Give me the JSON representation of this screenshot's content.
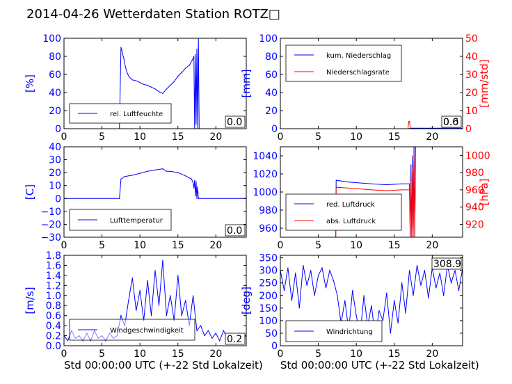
{
  "title": "2014-04-26 Wetterdaten Station ROTZ□",
  "xlabel": "Std 00:00:00 UTC (+-22 Std Lokalzeit)",
  "colors": {
    "primary": "#0000ff",
    "secondary": "#ff0000",
    "light": "#8080ff"
  },
  "chart_data": [
    {
      "id": "humidity",
      "type": "line",
      "ylabel": "[%]",
      "xlim": [
        0,
        24
      ],
      "ylim": [
        0,
        100
      ],
      "xticks": [
        "0",
        "5",
        "10",
        "15",
        "20"
      ],
      "yticks": [
        "0",
        "20",
        "40",
        "60",
        "80",
        "100"
      ],
      "legend": [
        "rel. Luftfeuchte"
      ],
      "last_value": "0.0",
      "series": [
        {
          "name": "rel. Luftfeuchte",
          "x": [
            0,
            7.3,
            7.5,
            7.7,
            7.9,
            8.1,
            8.3,
            8.6,
            9,
            9.5,
            10,
            10.5,
            11,
            11.5,
            12,
            12.5,
            13,
            13.5,
            14,
            14.5,
            15,
            15.5,
            16,
            16.5,
            16.9,
            17.1,
            17.2,
            17.3,
            17.4,
            17.5,
            17.6,
            17.7,
            17.8,
            24
          ],
          "y": [
            0,
            0,
            90,
            83,
            77,
            68,
            62,
            57,
            54,
            53,
            51,
            49,
            48,
            46,
            44,
            41,
            39,
            44,
            48,
            52,
            58,
            62,
            67,
            70,
            76,
            80,
            0,
            82,
            5,
            88,
            0,
            100,
            0,
            0
          ]
        }
      ]
    },
    {
      "id": "precip",
      "type": "line",
      "ylabel": "[mm]",
      "y2label": "[mm/std]",
      "xlim": [
        0,
        24
      ],
      "ylim": [
        0,
        100
      ],
      "y2lim": [
        0,
        50
      ],
      "xticks": [
        "0",
        "5",
        "10",
        "15",
        "20"
      ],
      "yticks": [
        "0",
        "20",
        "40",
        "60",
        "80",
        "100"
      ],
      "y2ticks": [
        "0",
        "10",
        "20",
        "30",
        "40",
        "50"
      ],
      "legend": [
        "kum. Niederschlag",
        "Niederschlagsrate"
      ],
      "last_value": "0.0",
      "last_value_2": "0.6",
      "series": [
        {
          "name": "kum. Niederschlag",
          "x": [
            0,
            16.9,
            17.1,
            17.5,
            18,
            24
          ],
          "y": [
            0,
            0,
            0.5,
            0.6,
            0.6,
            0.6
          ]
        },
        {
          "name": "Niederschlagsrate",
          "axis": "y2",
          "x": [
            0,
            16.8,
            16.9,
            17,
            17.1,
            17.2,
            24
          ],
          "y": [
            0,
            0,
            4,
            4,
            0.5,
            0,
            0
          ]
        }
      ]
    },
    {
      "id": "temperature",
      "type": "line",
      "ylabel": "[C]",
      "xlim": [
        0,
        24
      ],
      "ylim": [
        -30,
        40
      ],
      "xticks": [
        "0",
        "5",
        "10",
        "15",
        "20"
      ],
      "yticks": [
        "−30",
        "−20",
        "−10",
        "0",
        "10",
        "20",
        "30",
        "40"
      ],
      "legend": [
        "Lufttemperatur"
      ],
      "last_value": "0.0",
      "series": [
        {
          "name": "Lufttemperatur",
          "x": [
            0,
            7.3,
            7.5,
            8,
            9,
            10,
            11,
            12,
            12.5,
            13,
            13.5,
            14,
            15,
            16,
            16.5,
            16.8,
            17,
            17.1,
            17.2,
            17.3,
            17.4,
            17.5,
            17.6,
            17.7,
            17.8,
            24
          ],
          "y": [
            0,
            0,
            15,
            17,
            18,
            19.5,
            21,
            22,
            22.5,
            23,
            21,
            21,
            20,
            17.5,
            16,
            15,
            12,
            8,
            14,
            2,
            13,
            0,
            9,
            0,
            0,
            0
          ]
        }
      ]
    },
    {
      "id": "pressure",
      "type": "line",
      "ylabel": "",
      "y2label": "[hPa]",
      "xlim": [
        0,
        24
      ],
      "ylim": [
        950,
        1050
      ],
      "y2lim": [
        905,
        1010
      ],
      "xticks": [
        "0",
        "5",
        "10",
        "15",
        "20"
      ],
      "yticks": [
        "960",
        "980",
        "1000",
        "1020",
        "1040"
      ],
      "y2ticks": [
        "920",
        "940",
        "960",
        "980",
        "1000"
      ],
      "legend": [
        "red. Luftdruck",
        "abs. Luftdruck"
      ],
      "series": [
        {
          "name": "red. Luftdruck",
          "x": [
            7.3,
            7.35,
            9,
            12,
            14,
            15,
            16,
            17,
            17.1,
            17.2,
            17.3,
            17.4,
            17.5,
            17.6,
            17.7,
            17.8
          ],
          "y": [
            950,
            1013,
            1011,
            1009,
            1008,
            1008.5,
            1009,
            1009,
            950,
            1030,
            950,
            1040,
            955,
            1050,
            950,
            1050
          ]
        },
        {
          "name": "abs. Luftdruck",
          "axis": "y2",
          "x": [
            7.3,
            7.35,
            9,
            12,
            14,
            16,
            17,
            17.1,
            17.2,
            17.3,
            17.4,
            17.5,
            17.6,
            17.7,
            17.8
          ],
          "y": [
            905,
            963,
            962,
            960,
            959,
            960,
            960,
            905,
            970,
            905,
            985,
            905,
            1002,
            905,
            990
          ]
        }
      ]
    },
    {
      "id": "windspeed",
      "type": "line",
      "ylabel": "[m/s]",
      "xlim": [
        0,
        24
      ],
      "ylim": [
        0,
        1.8
      ],
      "xticks": [
        "0",
        "5",
        "10",
        "15",
        "20"
      ],
      "yticks": [
        "0.0",
        "0.2",
        "0.4",
        "0.6",
        "0.8",
        "1.0",
        "1.2",
        "1.4",
        "1.6",
        "1.8"
      ],
      "legend": [
        "Windgeschwindigkeit"
      ],
      "last_value": "0.2",
      "series": [
        {
          "name": "Windgeschwindigkeit",
          "x": [
            0,
            0.5,
            1,
            1.5,
            2,
            2.5,
            3,
            3.5,
            4,
            4.5,
            5,
            5.5,
            6,
            6.5,
            7,
            7.5,
            8,
            8.5,
            9,
            9.5,
            10,
            10.5,
            11,
            11.5,
            12,
            12.5,
            13,
            13.5,
            14,
            14.5,
            15,
            15.5,
            16,
            16.5,
            17,
            17.5,
            18,
            18.5,
            19,
            19.5,
            20,
            20.5,
            21,
            21.5,
            22,
            22.5,
            23,
            23.5,
            24
          ],
          "y": [
            0.2,
            0.1,
            0.3,
            0.15,
            0.2,
            0.1,
            0.25,
            0.1,
            0.3,
            0.15,
            0.2,
            0.1,
            0.25,
            0.15,
            0.2,
            0.6,
            0.4,
            0.9,
            1.35,
            0.7,
            1.1,
            0.5,
            1.3,
            0.6,
            1.5,
            0.8,
            1.7,
            0.6,
            1.0,
            0.5,
            1.4,
            0.6,
            0.9,
            0.4,
            1.0,
            0.3,
            0.4,
            0.2,
            0.3,
            0.15,
            0.25,
            0.1,
            0.3,
            0.15,
            0.2,
            0.1,
            0.25,
            0.15,
            0.2
          ]
        }
      ]
    },
    {
      "id": "winddir",
      "type": "line",
      "ylabel": "[deg]",
      "xlim": [
        0,
        24
      ],
      "ylim": [
        0,
        360
      ],
      "xticks": [
        "0",
        "5",
        "10",
        "15",
        "20"
      ],
      "yticks": [
        "0",
        "50",
        "100",
        "150",
        "200",
        "250",
        "300",
        "350"
      ],
      "legend": [
        "Windrichtung"
      ],
      "last_value": "308.9",
      "series": [
        {
          "name": "Windrichtung",
          "x": [
            0,
            0.5,
            1,
            1.5,
            2,
            2.5,
            3,
            3.5,
            4,
            4.5,
            5,
            5.5,
            6,
            6.5,
            7,
            7.5,
            8,
            8.5,
            9,
            9.5,
            10,
            10.5,
            11,
            11.5,
            12,
            12.5,
            13,
            13.5,
            14,
            14.5,
            15,
            15.5,
            16,
            16.5,
            17,
            17.5,
            18,
            18.5,
            19,
            19.5,
            20,
            20.5,
            21,
            21.5,
            22,
            22.5,
            23,
            23.5,
            24
          ],
          "y": [
            300,
            220,
            310,
            180,
            290,
            150,
            320,
            240,
            300,
            200,
            280,
            310,
            230,
            300,
            260,
            200,
            90,
            180,
            60,
            220,
            120,
            40,
            200,
            80,
            160,
            30,
            140,
            100,
            210,
            50,
            180,
            90,
            250,
            130,
            300,
            200,
            320,
            240,
            300,
            190,
            310,
            230,
            290,
            200,
            320,
            250,
            300,
            220,
            308
          ]
        }
      ]
    }
  ]
}
